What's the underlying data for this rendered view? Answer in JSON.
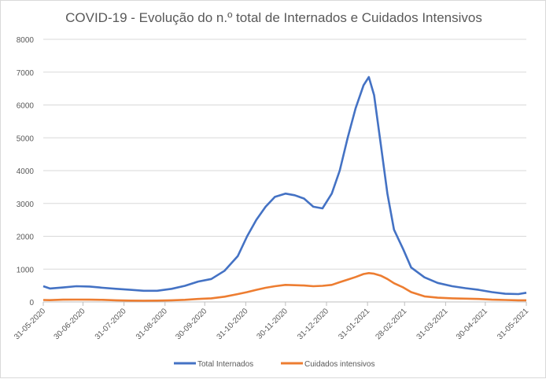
{
  "chart_data": {
    "type": "line",
    "title": "COVID-19 - Evolução do n.º total de Internados e Cuidados Intensivos",
    "xlabel": "",
    "ylabel": "",
    "ylim": [
      0,
      8000
    ],
    "yticks": [
      "0",
      "1000",
      "2000",
      "3000",
      "4000",
      "5000",
      "6000",
      "7000",
      "8000"
    ],
    "xlim": [
      "2020-05-31",
      "2021-05-31"
    ],
    "xticks": [
      {
        "date": "2020-05-31",
        "label": "31-05-2020"
      },
      {
        "date": "2020-06-30",
        "label": "30-06-2020"
      },
      {
        "date": "2020-07-31",
        "label": "31-07-2020"
      },
      {
        "date": "2020-08-31",
        "label": "31-08-2020"
      },
      {
        "date": "2020-09-30",
        "label": "30-09-2020"
      },
      {
        "date": "2020-10-31",
        "label": "31-10-2020"
      },
      {
        "date": "2020-11-30",
        "label": "30-11-2020"
      },
      {
        "date": "2020-12-31",
        "label": "31-12-2020"
      },
      {
        "date": "2021-01-31",
        "label": "31-01-2021"
      },
      {
        "date": "2021-02-28",
        "label": "28-02-2021"
      },
      {
        "date": "2021-03-31",
        "label": "31-03-2021"
      },
      {
        "date": "2021-04-30",
        "label": "30-04-2021"
      },
      {
        "date": "2021-05-31",
        "label": "31-05-2021"
      }
    ],
    "grid": true,
    "legend_position": "bottom",
    "x": [
      "2020-05-31",
      "2020-06-05",
      "2020-06-15",
      "2020-06-25",
      "2020-07-05",
      "2020-07-15",
      "2020-07-25",
      "2020-08-05",
      "2020-08-15",
      "2020-08-25",
      "2020-09-05",
      "2020-09-15",
      "2020-09-25",
      "2020-10-05",
      "2020-10-15",
      "2020-10-25",
      "2020-11-01",
      "2020-11-08",
      "2020-11-15",
      "2020-11-22",
      "2020-11-30",
      "2020-12-07",
      "2020-12-14",
      "2020-12-21",
      "2020-12-28",
      "2021-01-04",
      "2021-01-10",
      "2021-01-16",
      "2021-01-22",
      "2021-01-28",
      "2021-02-01",
      "2021-02-05",
      "2021-02-10",
      "2021-02-15",
      "2021-02-20",
      "2021-02-27",
      "2021-03-05",
      "2021-03-15",
      "2021-03-25",
      "2021-04-05",
      "2021-04-15",
      "2021-04-25",
      "2021-05-05",
      "2021-05-15",
      "2021-05-25",
      "2021-05-31"
    ],
    "series": [
      {
        "name": "Total Internados",
        "color": "#4472c4",
        "values": [
          480,
          410,
          440,
          480,
          470,
          430,
          400,
          370,
          340,
          340,
          400,
          490,
          620,
          700,
          950,
          1400,
          2000,
          2500,
          2900,
          3200,
          3300,
          3250,
          3150,
          2900,
          2850,
          3300,
          4000,
          5000,
          5900,
          6600,
          6850,
          6300,
          4800,
          3300,
          2200,
          1600,
          1050,
          750,
          580,
          480,
          420,
          370,
          300,
          250,
          240,
          280
        ]
      },
      {
        "name": "Cuidados intensivos",
        "color": "#ed7d31",
        "values": [
          60,
          55,
          70,
          72,
          70,
          65,
          50,
          40,
          38,
          40,
          50,
          65,
          90,
          110,
          160,
          240,
          300,
          370,
          430,
          480,
          520,
          510,
          500,
          480,
          490,
          520,
          600,
          680,
          760,
          850,
          880,
          860,
          800,
          700,
          570,
          440,
          300,
          170,
          130,
          110,
          100,
          90,
          70,
          60,
          50,
          50
        ]
      }
    ]
  }
}
